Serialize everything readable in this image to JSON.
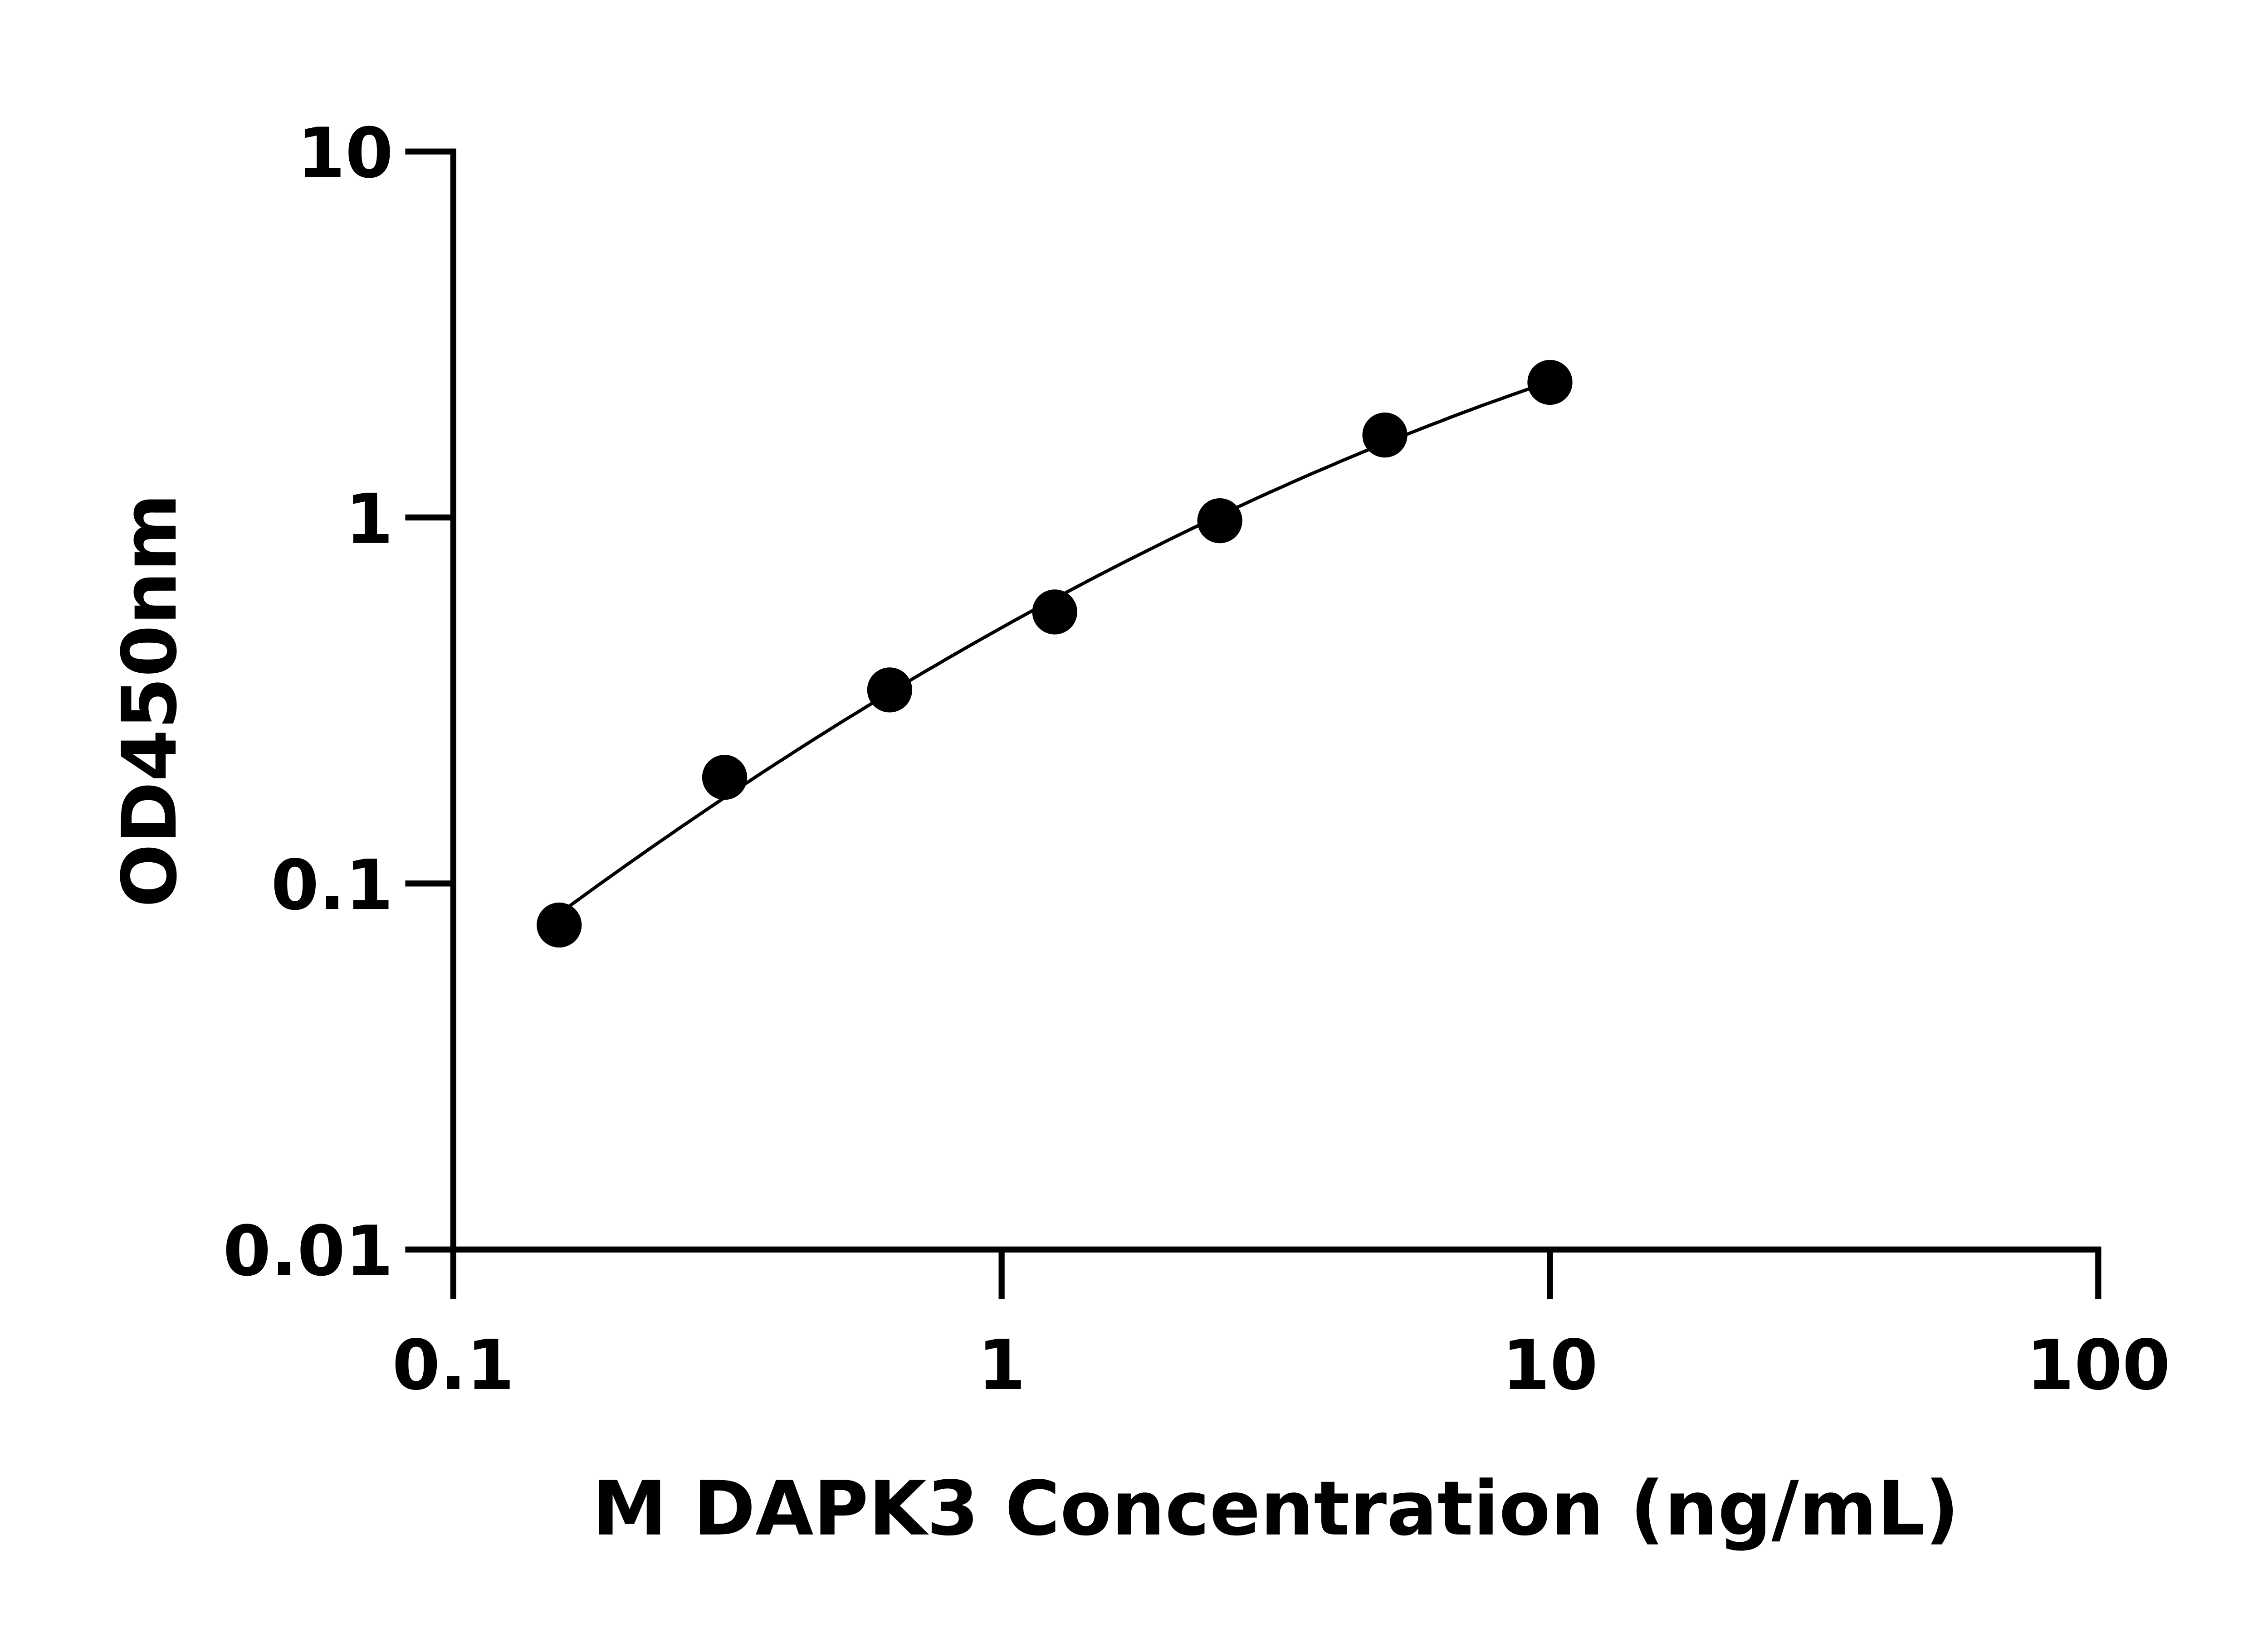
{
  "chart_data": {
    "type": "scatter",
    "title": "",
    "xlabel": "M DAPK3 Concentration (ng/mL)",
    "ylabel": "OD450nm",
    "xscale": "log",
    "yscale": "log",
    "xlim": [
      0.1,
      100
    ],
    "ylim": [
      0.01,
      10
    ],
    "xticks": [
      "0.1",
      "1",
      "10",
      "100"
    ],
    "yticks": [
      "0.01",
      "0.1",
      "1",
      "10"
    ],
    "grid": false,
    "legend": "none",
    "fit_curve": true,
    "marker_color": "#000000",
    "series": [
      {
        "x": [
          0.156,
          0.3125,
          0.625,
          1.25,
          2.5,
          5,
          10
        ],
        "y": [
          0.077,
          0.195,
          0.338,
          0.552,
          0.98,
          1.68,
          2.34
        ]
      }
    ]
  }
}
